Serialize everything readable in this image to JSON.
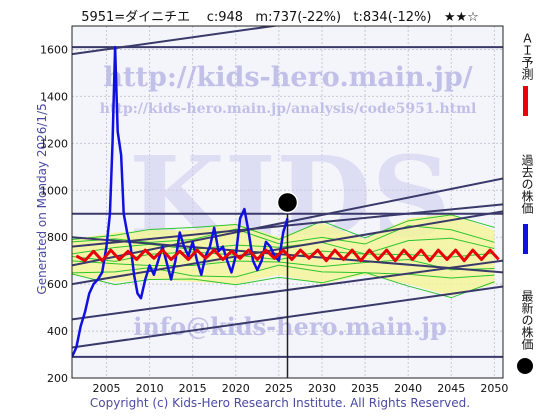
{
  "header": {
    "title": "5951=ダイニチエ    c:948   m:737(-22%)   t:834(-12%)   ★★☆"
  },
  "side_note": "Generated on Monday 2026/1/5.",
  "footer": {
    "copyright": "Copyright (c) Kids-Hero Research Institute. All Rights Reserved."
  },
  "watermarks": {
    "main": "http://kids-hero.main.jp/",
    "sub": "http://kids-hero.main.jp/analysis/code5951.html",
    "email": "info@kids-hero.main.jp",
    "big": "KIDS"
  },
  "legend": {
    "ai_forecast": "ＡＩ予測",
    "past_price": "過去の株価",
    "latest_price": "最新の株価"
  },
  "colors": {
    "ai_forecast": "#e8000b",
    "past_price": "#1010e0",
    "latest_dot": "#000000",
    "band_fill": "#f3f59a",
    "band_lines": "#2ec42e",
    "trend_lines": "#3a3a6a"
  },
  "chart_data": {
    "type": "line",
    "xlim": [
      2001,
      2051
    ],
    "ylim": [
      200,
      1700
    ],
    "x_ticks": [
      2005,
      2010,
      2015,
      2020,
      2025,
      2030,
      2035,
      2040,
      2045,
      2050
    ],
    "y_ticks": [
      200,
      400,
      600,
      800,
      1000,
      1200,
      1400,
      1600
    ],
    "grid": true,
    "series": [
      {
        "name": "過去の株価",
        "kind": "price",
        "points": [
          [
            2001.0,
            290
          ],
          [
            2001.5,
            330
          ],
          [
            2002.0,
            420
          ],
          [
            2002.5,
            480
          ],
          [
            2003.0,
            560
          ],
          [
            2003.5,
            600
          ],
          [
            2004.0,
            620
          ],
          [
            2004.5,
            650
          ],
          [
            2005.0,
            760
          ],
          [
            2005.4,
            900
          ],
          [
            2005.7,
            1200
          ],
          [
            2006.0,
            1610
          ],
          [
            2006.3,
            1250
          ],
          [
            2006.7,
            1150
          ],
          [
            2007.0,
            900
          ],
          [
            2007.4,
            820
          ],
          [
            2007.8,
            760
          ],
          [
            2008.2,
            640
          ],
          [
            2008.6,
            560
          ],
          [
            2009.0,
            540
          ],
          [
            2009.5,
            620
          ],
          [
            2010.0,
            680
          ],
          [
            2010.5,
            640
          ],
          [
            2011.0,
            700
          ],
          [
            2011.5,
            760
          ],
          [
            2012.0,
            690
          ],
          [
            2012.5,
            620
          ],
          [
            2013.0,
            700
          ],
          [
            2013.5,
            820
          ],
          [
            2014.0,
            760
          ],
          [
            2014.5,
            720
          ],
          [
            2015.0,
            780
          ],
          [
            2015.5,
            700
          ],
          [
            2016.0,
            640
          ],
          [
            2016.5,
            720
          ],
          [
            2017.0,
            760
          ],
          [
            2017.5,
            840
          ],
          [
            2018.0,
            740
          ],
          [
            2018.5,
            760
          ],
          [
            2019.0,
            700
          ],
          [
            2019.5,
            650
          ],
          [
            2020.0,
            720
          ],
          [
            2020.5,
            880
          ],
          [
            2021.0,
            920
          ],
          [
            2021.5,
            820
          ],
          [
            2022.0,
            700
          ],
          [
            2022.5,
            660
          ],
          [
            2023.0,
            700
          ],
          [
            2023.5,
            780
          ],
          [
            2024.0,
            760
          ],
          [
            2024.5,
            720
          ],
          [
            2025.0,
            700
          ],
          [
            2025.5,
            820
          ],
          [
            2026.0,
            880
          ]
        ]
      },
      {
        "name": "ＡＩ予測",
        "kind": "forecast",
        "points": [
          [
            2001.5,
            720
          ],
          [
            2002.5,
            700
          ],
          [
            2003.5,
            740
          ],
          [
            2004.5,
            700
          ],
          [
            2005.5,
            745
          ],
          [
            2006.5,
            705
          ],
          [
            2007.5,
            740
          ],
          [
            2008.5,
            705
          ],
          [
            2009.5,
            745
          ],
          [
            2010.5,
            710
          ],
          [
            2011.5,
            745
          ],
          [
            2012.5,
            705
          ],
          [
            2013.5,
            740
          ],
          [
            2014.5,
            705
          ],
          [
            2015.5,
            745
          ],
          [
            2016.5,
            710
          ],
          [
            2017.5,
            745
          ],
          [
            2018.5,
            705
          ],
          [
            2019.5,
            740
          ],
          [
            2020.5,
            710
          ],
          [
            2021.5,
            745
          ],
          [
            2022.5,
            705
          ],
          [
            2023.5,
            745
          ],
          [
            2024.5,
            710
          ],
          [
            2025.5,
            745
          ],
          [
            2026.5,
            705
          ],
          [
            2027.5,
            745
          ],
          [
            2028.5,
            710
          ],
          [
            2029.5,
            745
          ],
          [
            2030.5,
            700
          ],
          [
            2031.5,
            745
          ],
          [
            2032.5,
            705
          ],
          [
            2033.5,
            745
          ],
          [
            2034.5,
            700
          ],
          [
            2035.5,
            745
          ],
          [
            2036.5,
            705
          ],
          [
            2037.5,
            745
          ],
          [
            2038.5,
            700
          ],
          [
            2039.5,
            745
          ],
          [
            2040.5,
            705
          ],
          [
            2041.5,
            745
          ],
          [
            2042.5,
            700
          ],
          [
            2043.5,
            745
          ],
          [
            2044.5,
            705
          ],
          [
            2045.5,
            745
          ],
          [
            2046.5,
            700
          ],
          [
            2047.5,
            745
          ],
          [
            2048.5,
            705
          ],
          [
            2049.5,
            745
          ],
          [
            2050.5,
            705
          ]
        ]
      }
    ],
    "band": {
      "upper": [
        [
          2001,
          790
        ],
        [
          2006,
          820
        ],
        [
          2010,
          830
        ],
        [
          2015,
          830
        ],
        [
          2020,
          860
        ],
        [
          2025,
          800
        ],
        [
          2030,
          860
        ],
        [
          2035,
          790
        ],
        [
          2040,
          880
        ],
        [
          2045,
          900
        ],
        [
          2050,
          830
        ]
      ],
      "lower": [
        [
          2001,
          640
        ],
        [
          2006,
          610
        ],
        [
          2010,
          620
        ],
        [
          2015,
          610
        ],
        [
          2020,
          600
        ],
        [
          2025,
          640
        ],
        [
          2030,
          600
        ],
        [
          2035,
          640
        ],
        [
          2040,
          600
        ],
        [
          2045,
          550
        ],
        [
          2050,
          600
        ]
      ]
    },
    "latest": {
      "x": 2026.0,
      "y": 948
    },
    "trend_lines": [
      [
        [
          2001,
          1580
        ],
        [
          2036,
          1760
        ]
      ],
      [
        [
          2001,
          1610
        ],
        [
          2051,
          1610
        ]
      ],
      [
        [
          2001,
          900
        ],
        [
          2051,
          900
        ]
      ],
      [
        [
          2001,
          330
        ],
        [
          2051,
          590
        ]
      ],
      [
        [
          2001,
          290
        ],
        [
          2051,
          290
        ]
      ],
      [
        [
          2001,
          450
        ],
        [
          2051,
          700
        ]
      ],
      [
        [
          2001,
          600
        ],
        [
          2051,
          910
        ]
      ],
      [
        [
          2001,
          680
        ],
        [
          2051,
          1050
        ]
      ],
      [
        [
          2001,
          760
        ],
        [
          2051,
          940
        ]
      ],
      [
        [
          2001,
          800
        ],
        [
          2051,
          650
        ]
      ]
    ]
  }
}
